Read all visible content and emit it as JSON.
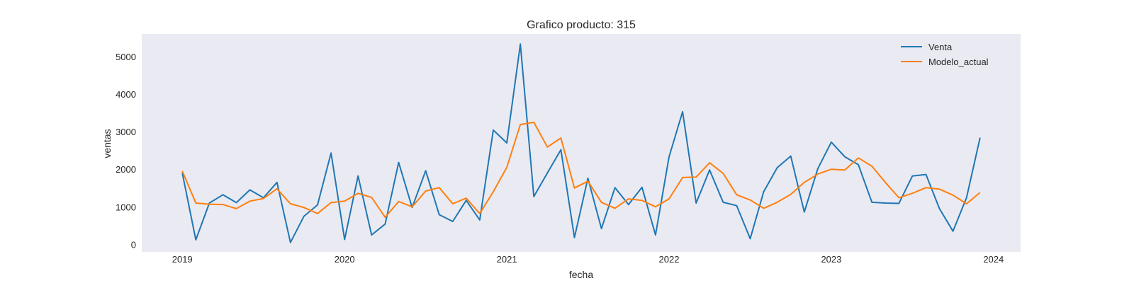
{
  "chart_data": {
    "type": "line",
    "title": "Grafico producto: 315",
    "xlabel": "fecha",
    "ylabel": "ventas",
    "x_axis": "monthly dates",
    "x_ticks": [
      "2019",
      "2020",
      "2021",
      "2022",
      "2023",
      "2024"
    ],
    "y_ticks": [
      0,
      1000,
      2000,
      3000,
      4000,
      5000
    ],
    "ylim": [
      -200,
      5600
    ],
    "xlim": [
      "2018-10",
      "2024-03"
    ],
    "grid": false,
    "legend_position": "top-right",
    "x": [
      "2019-01",
      "2019-02",
      "2019-03",
      "2019-04",
      "2019-05",
      "2019-06",
      "2019-07",
      "2019-08",
      "2019-09",
      "2019-10",
      "2019-11",
      "2019-12",
      "2020-01",
      "2020-02",
      "2020-03",
      "2020-04",
      "2020-05",
      "2020-06",
      "2020-07",
      "2020-08",
      "2020-09",
      "2020-10",
      "2020-11",
      "2020-12",
      "2021-01",
      "2021-02",
      "2021-03",
      "2021-04",
      "2021-05",
      "2021-06",
      "2021-07",
      "2021-08",
      "2021-09",
      "2021-10",
      "2021-11",
      "2021-12",
      "2022-01",
      "2022-02",
      "2022-03",
      "2022-04",
      "2022-05",
      "2022-06",
      "2022-07",
      "2022-08",
      "2022-09",
      "2022-10",
      "2022-11",
      "2022-12",
      "2023-01",
      "2023-02",
      "2023-03",
      "2023-04",
      "2023-05",
      "2023-06",
      "2023-07",
      "2023-08",
      "2023-09",
      "2023-10",
      "2023-11",
      "2023-12"
    ],
    "series": [
      {
        "name": "Venta",
        "color": "#1f77b4",
        "values": [
          1900,
          120,
          1100,
          1320,
          1110,
          1450,
          1240,
          1650,
          50,
          750,
          1050,
          2430,
          130,
          1820,
          250,
          540,
          2180,
          980,
          1960,
          790,
          610,
          1170,
          650,
          3040,
          2700,
          5330,
          1270,
          1900,
          2520,
          180,
          1760,
          420,
          1510,
          1060,
          1520,
          250,
          2330,
          3530,
          1100,
          1980,
          1120,
          1030,
          150,
          1400,
          2040,
          2350,
          860,
          2010,
          2720,
          2330,
          2120,
          1120,
          1100,
          1090,
          1820,
          1860,
          950,
          350,
          1240,
          2840
        ]
      },
      {
        "name": "Modelo_actual",
        "color": "#ff7f0e",
        "values": [
          1950,
          1100,
          1070,
          1060,
          950,
          1150,
          1220,
          1480,
          1080,
          980,
          820,
          1110,
          1150,
          1360,
          1250,
          720,
          1140,
          1000,
          1420,
          1510,
          1080,
          1230,
          820,
          1400,
          2050,
          3190,
          3250,
          2590,
          2830,
          1500,
          1680,
          1120,
          960,
          1210,
          1170,
          1000,
          1210,
          1780,
          1790,
          2170,
          1890,
          1320,
          1180,
          960,
          1120,
          1330,
          1650,
          1870,
          2000,
          1980,
          2300,
          2080,
          1650,
          1240,
          1360,
          1510,
          1470,
          1310,
          1080,
          1380
        ]
      }
    ]
  }
}
